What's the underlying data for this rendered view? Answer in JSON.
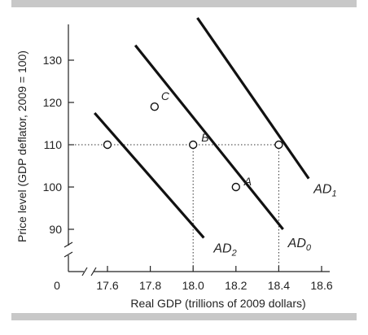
{
  "chart_data": {
    "type": "line",
    "xlabel": "Real GDP (trillions of 2009 dollars)",
    "ylabel": "Price level (GDP deflator, 2009 = 100)",
    "origin_label": "0",
    "xlim": [
      17.5,
      18.6
    ],
    "ylim": [
      85,
      138
    ],
    "x_ticks": [
      "17.6",
      "17.8",
      "18.0",
      "18.2",
      "18.4",
      "18.6"
    ],
    "y_ticks": [
      "90",
      "100",
      "110",
      "120",
      "130"
    ],
    "x_tick_values": [
      17.6,
      17.8,
      18.0,
      18.2,
      18.4,
      18.6
    ],
    "y_tick_values": [
      90,
      100,
      110,
      120,
      130
    ],
    "series": [
      {
        "name": "AD2",
        "label_main": "AD",
        "label_sub": "2",
        "x": [
          17.54,
          18.05
        ],
        "y": [
          117.5,
          88
        ]
      },
      {
        "name": "AD0",
        "label_main": "AD",
        "label_sub": "0",
        "x": [
          17.73,
          18.42
        ],
        "y": [
          133.5,
          90
        ]
      },
      {
        "name": "AD1",
        "label_main": "AD",
        "label_sub": "1",
        "x": [
          18.02,
          18.54
        ],
        "y": [
          140,
          102
        ]
      }
    ],
    "points": [
      {
        "label": "C",
        "x": 17.82,
        "y": 119
      },
      {
        "label": "B",
        "x": 18.0,
        "y": 110
      },
      {
        "label": "A",
        "x": 18.2,
        "y": 100
      },
      {
        "label": "",
        "x": 17.6,
        "y": 110
      },
      {
        "label": "",
        "x": 18.4,
        "y": 110
      }
    ],
    "reference_lines": {
      "y": 110,
      "x": [
        18.0,
        18.4
      ]
    },
    "axis_breaks": true,
    "grid": false
  }
}
